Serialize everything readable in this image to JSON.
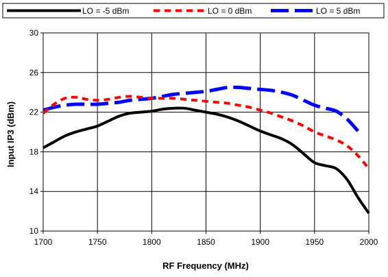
{
  "chart_data": {
    "type": "line",
    "xlabel": "RF Frequency (MHz)",
    "ylabel": "Input IP3 (dBm)",
    "xlim": [
      1700,
      2000
    ],
    "ylim": [
      10,
      30
    ],
    "x_ticks": [
      1700,
      1750,
      1800,
      1850,
      1900,
      1950,
      2000
    ],
    "y_ticks": [
      10,
      14,
      18,
      22,
      26,
      30
    ],
    "grid": true,
    "legend_position": "top",
    "series": [
      {
        "name": "LO = -5 dBm",
        "color": "#000000",
        "line_style": "solid",
        "x": [
          1700,
          1710,
          1720,
          1730,
          1740,
          1750,
          1760,
          1770,
          1780,
          1790,
          1800,
          1810,
          1820,
          1830,
          1840,
          1850,
          1860,
          1870,
          1880,
          1890,
          1900,
          1910,
          1920,
          1930,
          1940,
          1950,
          1960,
          1970,
          1980,
          1990,
          2000
        ],
        "y": [
          18.4,
          19.0,
          19.6,
          20.0,
          20.3,
          20.6,
          21.1,
          21.6,
          21.9,
          22.0,
          22.1,
          22.3,
          22.4,
          22.4,
          22.2,
          22.0,
          21.8,
          21.5,
          21.1,
          20.6,
          20.1,
          19.7,
          19.3,
          18.7,
          17.8,
          16.9,
          16.6,
          16.3,
          15.2,
          13.4,
          11.8
        ]
      },
      {
        "name": "LO = 0 dBm",
        "color": "#ff0000",
        "line_style": "dashed",
        "x": [
          1700,
          1710,
          1720,
          1730,
          1740,
          1750,
          1760,
          1770,
          1780,
          1790,
          1800,
          1810,
          1820,
          1830,
          1840,
          1850,
          1860,
          1870,
          1880,
          1890,
          1900,
          1910,
          1920,
          1930,
          1940,
          1950,
          1960,
          1970,
          1980,
          1990,
          2000
        ],
        "y": [
          21.9,
          22.8,
          23.4,
          23.5,
          23.3,
          23.2,
          23.3,
          23.5,
          23.6,
          23.5,
          23.4,
          23.4,
          23.4,
          23.3,
          23.2,
          23.1,
          23.0,
          22.9,
          22.7,
          22.5,
          22.2,
          21.9,
          21.5,
          21.1,
          20.6,
          20.0,
          19.6,
          19.2,
          18.6,
          17.6,
          16.3
        ]
      },
      {
        "name": "LO = 5 dBm",
        "color": "#0000ff",
        "line_style": "long-dash",
        "x": [
          1700,
          1710,
          1720,
          1730,
          1740,
          1750,
          1760,
          1770,
          1780,
          1790,
          1800,
          1810,
          1820,
          1830,
          1840,
          1850,
          1860,
          1870,
          1880,
          1890,
          1900,
          1910,
          1920,
          1930,
          1940,
          1950,
          1960,
          1970,
          1980,
          1990
        ],
        "y": [
          22.2,
          22.5,
          22.7,
          22.8,
          22.8,
          22.8,
          22.9,
          23.0,
          23.2,
          23.3,
          23.4,
          23.6,
          23.8,
          23.9,
          24.0,
          24.1,
          24.3,
          24.5,
          24.5,
          24.4,
          24.3,
          24.2,
          24.0,
          23.7,
          23.2,
          22.7,
          22.4,
          22.1,
          21.3,
          20.1
        ]
      }
    ]
  }
}
